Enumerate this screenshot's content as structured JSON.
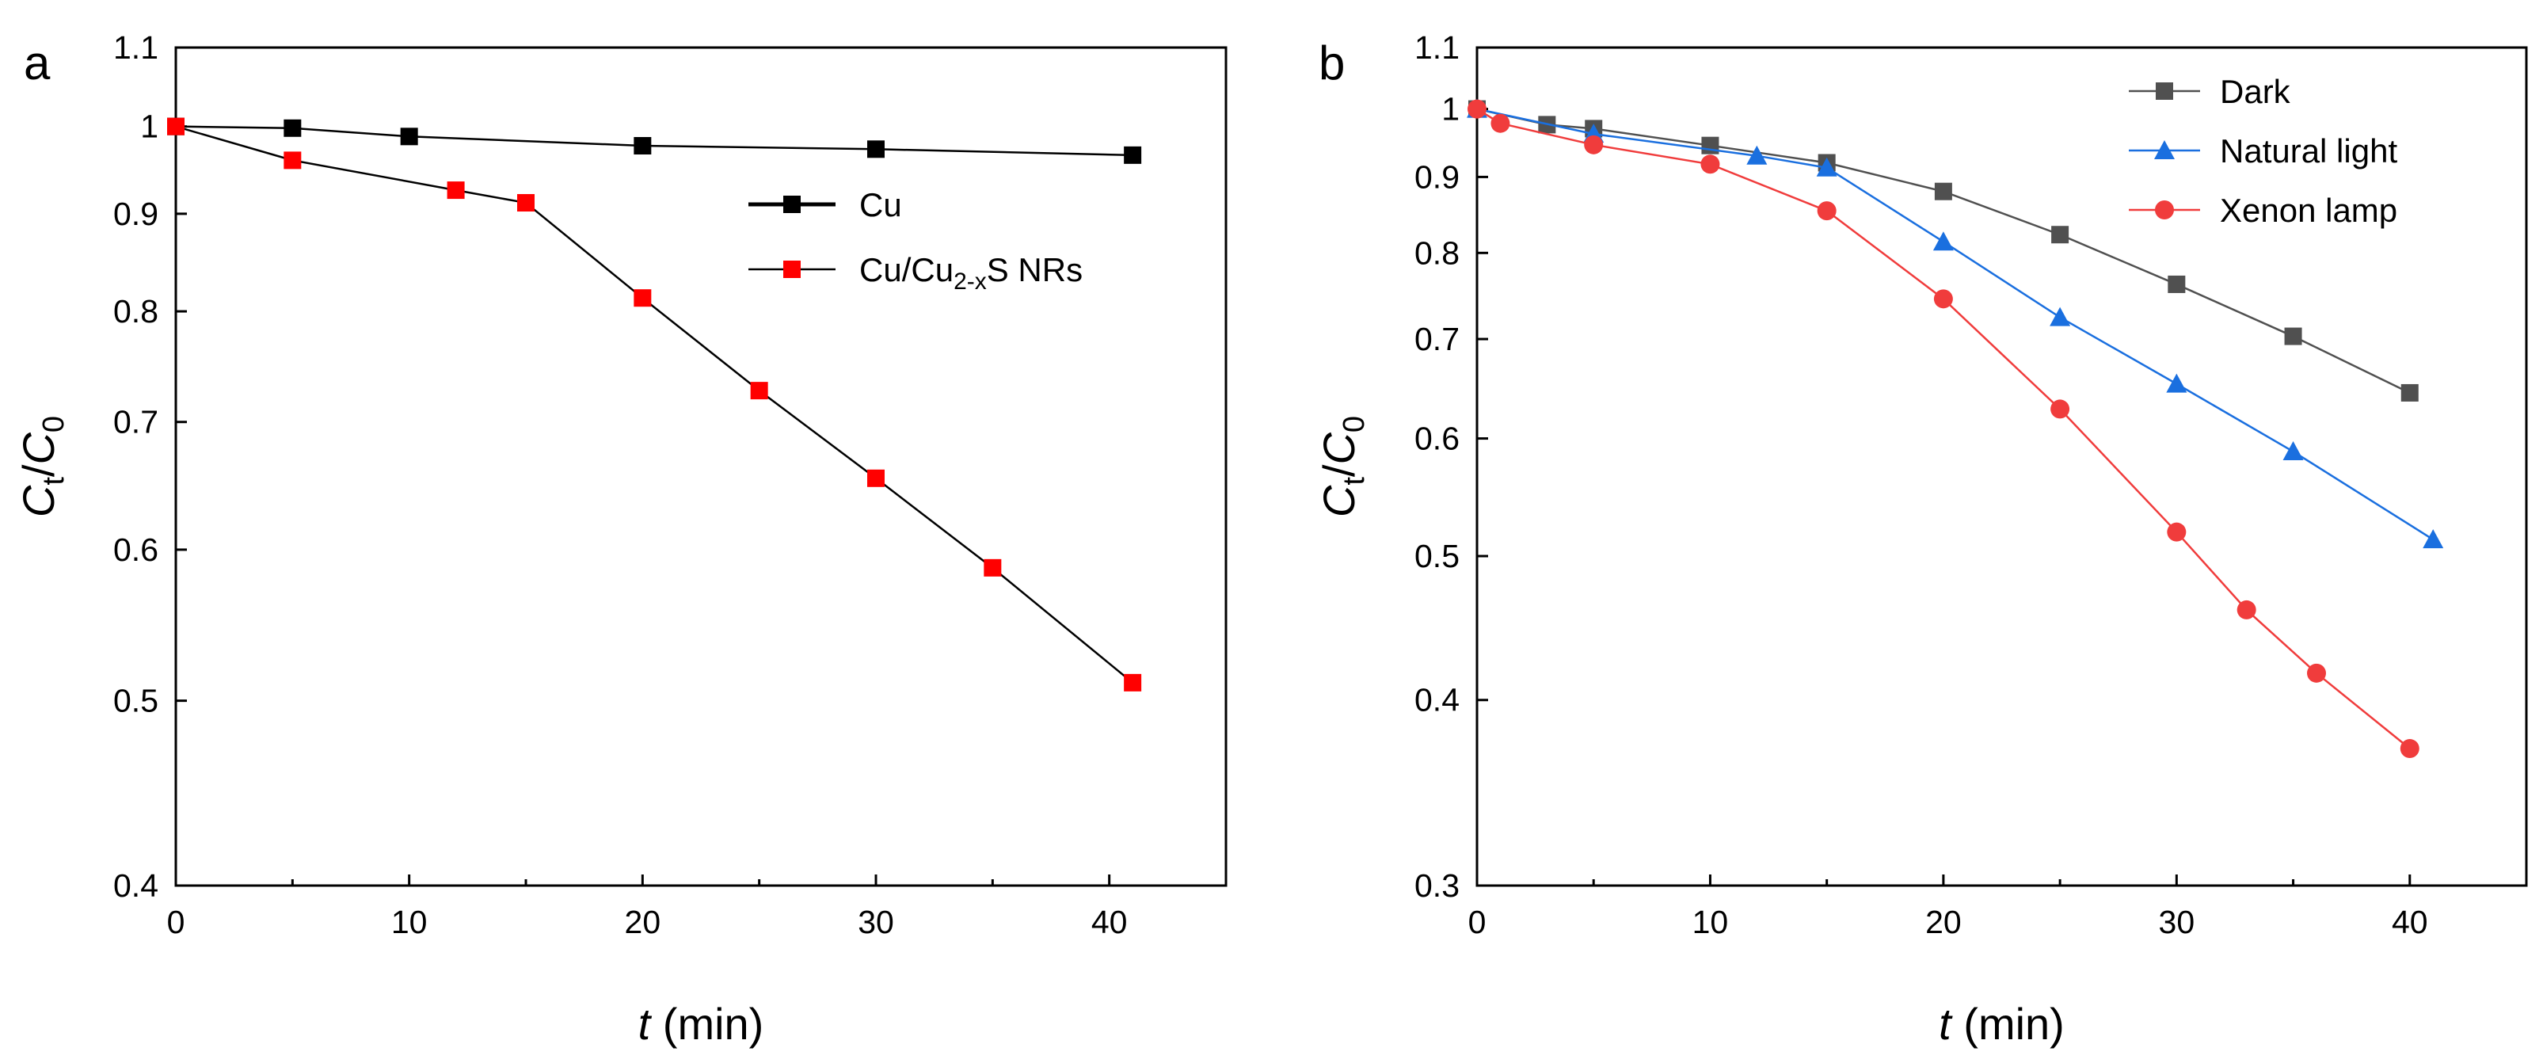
{
  "chart_data": [
    {
      "panel": "a",
      "type": "line",
      "y_scale": "log",
      "xlabel": "t (min)",
      "ylabel": "Ct/C0",
      "xlim": [
        0,
        45
      ],
      "ylim": [
        0.4,
        1.1
      ],
      "xticks": [
        "0",
        "10",
        "20",
        "30",
        "40"
      ],
      "yticks": [
        "0.4",
        "0.5",
        "0.6",
        "0.7",
        "0.8",
        "0.9",
        "1",
        "1.1"
      ],
      "legend_position": "center-right",
      "series": [
        {
          "name": "Cu",
          "color": "#000000",
          "marker": "square",
          "x": [
            0,
            5,
            10,
            20,
            30,
            41
          ],
          "values": [
            1.0,
            0.998,
            0.988,
            0.977,
            0.973,
            0.966
          ]
        },
        {
          "name": "Cu/Cu2-xS NRs",
          "color": "#ff0000",
          "marker": "square",
          "x": [
            0,
            5,
            12,
            15,
            20,
            25,
            30,
            35,
            41
          ],
          "values": [
            1.0,
            0.96,
            0.926,
            0.912,
            0.813,
            0.727,
            0.654,
            0.587,
            0.511
          ]
        }
      ]
    },
    {
      "panel": "b",
      "type": "line",
      "y_scale": "log",
      "xlabel": "t (min)",
      "ylabel": "Ct/C0",
      "xlim": [
        0,
        45
      ],
      "ylim": [
        0.3,
        1.1
      ],
      "xticks": [
        "0",
        "10",
        "20",
        "30",
        "40"
      ],
      "yticks": [
        "0.3",
        "0.4",
        "0.5",
        "0.6",
        "0.7",
        "0.8",
        "0.9",
        "1",
        "1.1"
      ],
      "legend_position": "top-right",
      "series": [
        {
          "name": "Dark",
          "color": "#505050",
          "marker": "square",
          "x": [
            0,
            3,
            5,
            10,
            15,
            20,
            25,
            30,
            35,
            40
          ],
          "values": [
            1.0,
            0.976,
            0.97,
            0.945,
            0.92,
            0.88,
            0.823,
            0.762,
            0.703,
            0.644
          ]
        },
        {
          "name": "Natural light",
          "color": "#1a6fdf",
          "marker": "triangle",
          "x": [
            0,
            5,
            12,
            15,
            20,
            25,
            30,
            35,
            41
          ],
          "values": [
            1.0,
            0.962,
            0.93,
            0.913,
            0.814,
            0.724,
            0.653,
            0.588,
            0.513
          ]
        },
        {
          "name": "Xenon lamp",
          "color": "#f03c3c",
          "marker": "circle",
          "x": [
            0,
            1,
            5,
            10,
            15,
            20,
            25,
            30,
            33,
            36,
            40
          ],
          "values": [
            1.0,
            0.978,
            0.946,
            0.918,
            0.854,
            0.745,
            0.628,
            0.519,
            0.46,
            0.417,
            0.371
          ]
        }
      ]
    }
  ]
}
